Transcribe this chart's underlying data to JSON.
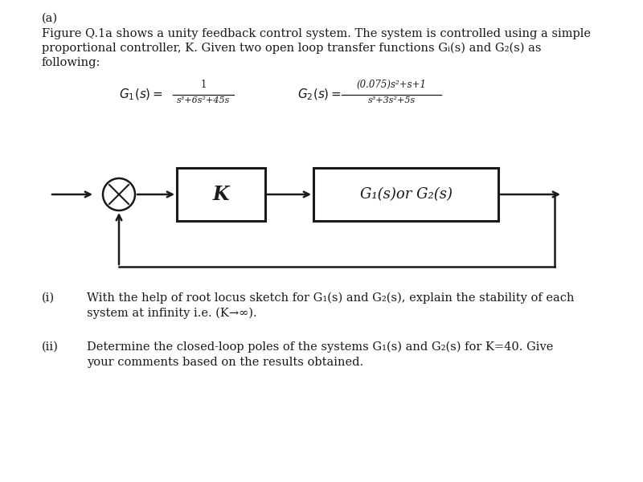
{
  "title_label": "(a)",
  "para_line1": "Figure Q.1a shows a unity feedback control system. The system is controlled using a simple",
  "para_line2": "proportional controller, K. Given two open loop transfer functions Gᵢ(s) and G₂(s) as",
  "para_line3": "following:",
  "G1_label": "G",
  "G1_num": "1",
  "G1_frac_num": "1",
  "G1_frac_den": "s³+6s²+45s",
  "G2_frac_num": "(0.075)s²+s+1",
  "G2_frac_den": "s³+3s²+5s",
  "block_K": "K",
  "block_G": "G₁(s)or G₂(s)",
  "q_i_label": "(i)",
  "q_i_line1": "With the help of root locus sketch for G₁(s) and G₂(s), explain the stability of each",
  "q_i_line2": "system at infinity i.e. (K→∞).",
  "q_ii_label": "(ii)",
  "q_ii_line1": "Determine the closed-loop poles of the systems G₁(s) and G₂(s) for K=40. Give",
  "q_ii_line2": "your comments based on the results obtained.",
  "bg_color": "#ffffff",
  "text_color": "#1a1a1a",
  "box_color": "#1a1a1a",
  "body_fontsize": 10.5,
  "small_fontsize": 8.5
}
